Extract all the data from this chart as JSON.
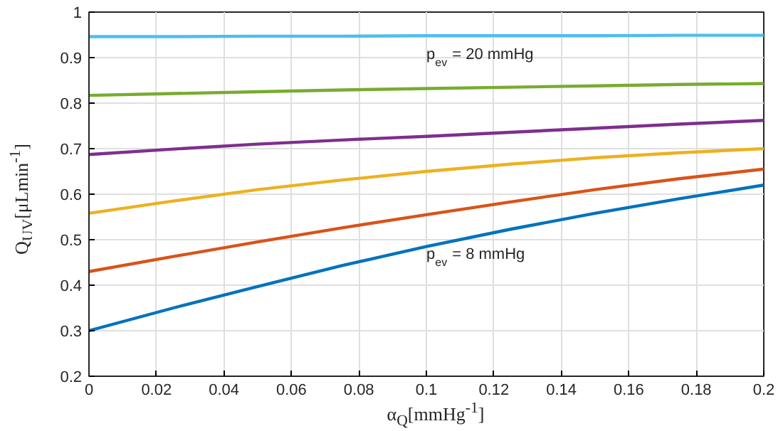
{
  "chart_data": {
    "type": "line",
    "xlabel": "α$_{Q}$[mmHg$^{-1}$]",
    "ylabel": "Q$_{UV}$[μLmin$^{-1}$]",
    "x": [
      0,
      0.025,
      0.05,
      0.075,
      0.1,
      0.125,
      0.15,
      0.175,
      0.2
    ],
    "series": [
      {
        "color": "#0072bd",
        "values": [
          0.3,
          0.35,
          0.397,
          0.443,
          0.485,
          0.523,
          0.558,
          0.59,
          0.62
        ]
      },
      {
        "color": "#d95319",
        "values": [
          0.43,
          0.463,
          0.495,
          0.526,
          0.555,
          0.583,
          0.61,
          0.634,
          0.655
        ]
      },
      {
        "color": "#edb120",
        "values": [
          0.558,
          0.585,
          0.61,
          0.631,
          0.65,
          0.666,
          0.68,
          0.691,
          0.7
        ]
      },
      {
        "color": "#7e2f8e",
        "values": [
          0.687,
          0.699,
          0.71,
          0.719,
          0.727,
          0.736,
          0.745,
          0.754,
          0.762
        ]
      },
      {
        "color": "#77ac30",
        "values": [
          0.817,
          0.821,
          0.825,
          0.829,
          0.832,
          0.835,
          0.838,
          0.841,
          0.843
        ]
      },
      {
        "color": "#4dbeee",
        "values": [
          0.946,
          0.946,
          0.947,
          0.947,
          0.948,
          0.948,
          0.948,
          0.949,
          0.949
        ]
      }
    ],
    "annotations": [
      "p$_{ev}$ = 20 mmHg",
      "p$_{ev}$ = 8 mmHg"
    ],
    "xlim": [
      0,
      0.2
    ],
    "ylim": [
      0.2,
      1
    ],
    "xticks": [
      0,
      0.02,
      0.04,
      0.06,
      0.08,
      0.1,
      0.12,
      0.14,
      0.16,
      0.18,
      0.2
    ],
    "yticks": [
      0.2,
      0.3,
      0.4,
      0.5,
      0.6,
      0.7,
      0.8,
      0.9,
      1
    ],
    "grid": true,
    "line_style": "solid",
    "marker": "none"
  }
}
